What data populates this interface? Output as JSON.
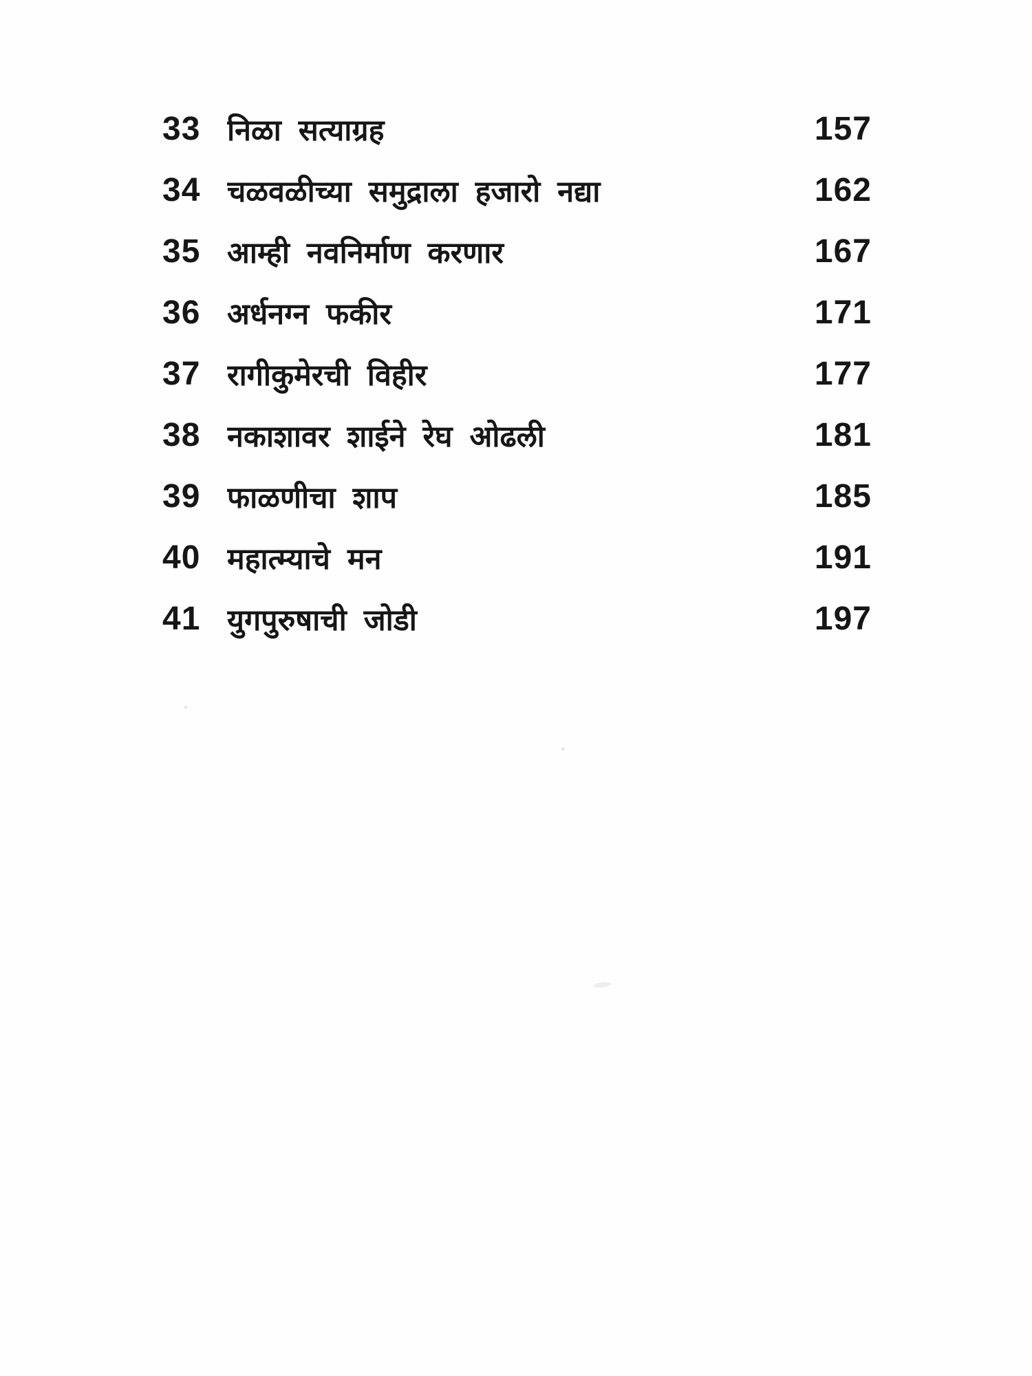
{
  "colors": {
    "paper": "#fefefe",
    "ink": "#161616"
  },
  "toc": {
    "rows": [
      {
        "num": "33",
        "title": "निळा सत्याग्रह",
        "page": "157"
      },
      {
        "num": "34",
        "title": "चळवळीच्या समुद्राला हजारो नद्या",
        "page": "162"
      },
      {
        "num": "35",
        "title": "आम्ही नवनिर्माण करणार",
        "page": "167"
      },
      {
        "num": "36",
        "title": "अर्धनग्न फकीर",
        "page": "171"
      },
      {
        "num": "37",
        "title": "रागीकुमेरची विहीर",
        "page": "177"
      },
      {
        "num": "38",
        "title": "नकाशावर शाईने रेघ ओढली",
        "page": "181"
      },
      {
        "num": "39",
        "title": "फाळणीचा शाप",
        "page": "185"
      },
      {
        "num": "40",
        "title": "महात्म्याचे मन",
        "page": "191"
      },
      {
        "num": "41",
        "title": "युगपुरुषाची जोडी",
        "page": "197"
      }
    ]
  }
}
